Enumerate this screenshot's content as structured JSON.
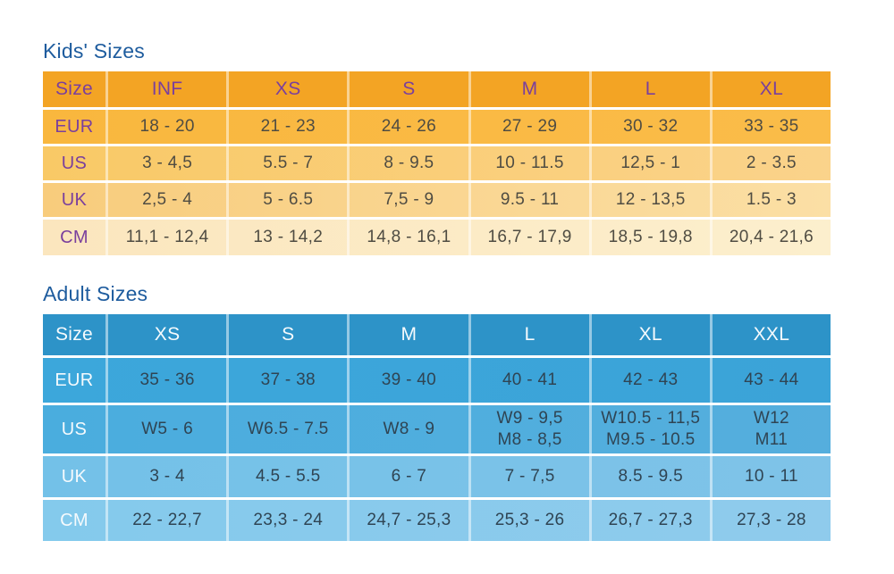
{
  "colors": {
    "page_background": "#ffffff",
    "title_text": "#1e5c9e",
    "kids_header_bg": "#f3a424",
    "kids_row_eur_bg": "#f9b942",
    "kids_row_us_bg": "#f9ce79",
    "kids_row_uk_bg": "#fad691",
    "kids_row_cm_bg": "#fbeac5",
    "kids_label_text": "#7a3f9d",
    "kids_value_text": "#4f4c42",
    "adult_header_bg": "#2d93c8",
    "adult_row_eur_bg": "#3ca7db",
    "adult_row_us_bg": "#4fadde",
    "adult_row_uk_bg": "#79c2e8",
    "adult_row_cm_bg": "#89caec",
    "adult_label_text": "#ffffff",
    "adult_value_text": "#2f4453"
  },
  "chart_data": [
    {
      "type": "table",
      "title": "Kids' Sizes",
      "header": [
        "Size",
        "INF",
        "XS",
        "S",
        "M",
        "L",
        "XL"
      ],
      "rows": [
        {
          "label": "EUR",
          "values": [
            "18 - 20",
            "21 - 23",
            "24 - 26",
            "27 - 29",
            "30 - 32",
            "33 - 35"
          ]
        },
        {
          "label": "US",
          "values": [
            "3 - 4,5",
            "5.5 - 7",
            "8 - 9.5",
            "10 - 11.5",
            "12,5 - 1",
            "2 - 3.5"
          ]
        },
        {
          "label": "UK",
          "values": [
            "2,5 - 4",
            "5 - 6.5",
            "7,5 - 9",
            "9.5 - 11",
            "12 - 13,5",
            "1.5 - 3"
          ]
        },
        {
          "label": "CM",
          "values": [
            "11,1 - 12,4",
            "13 - 14,2",
            "14,8 - 16,1",
            "16,7 - 17,9",
            "18,5 - 19,8",
            "20,4 - 21,6"
          ]
        }
      ]
    },
    {
      "type": "table",
      "title": "Adult Sizes",
      "header": [
        "Size",
        "XS",
        "S",
        "M",
        "L",
        "XL",
        "XXL"
      ],
      "rows": [
        {
          "label": "EUR",
          "values": [
            "35 - 36",
            "37 - 38",
            "39 - 40",
            "40 - 41",
            "42 - 43",
            "43 - 44"
          ]
        },
        {
          "label": "US",
          "values": [
            "W5 - 6",
            "W6.5 - 7.5",
            "W8 - 9",
            "W9 - 9,5\nM8 - 8,5",
            "W10.5 - 11,5\nM9.5 - 10.5",
            "W12\nM11"
          ]
        },
        {
          "label": "UK",
          "values": [
            "3 - 4",
            "4.5 - 5.5",
            "6 - 7",
            "7 - 7,5",
            "8.5 - 9.5",
            "10 - 11"
          ]
        },
        {
          "label": "CM",
          "values": [
            "22 - 22,7",
            "23,3 - 24",
            "24,7 - 25,3",
            "25,3 - 26",
            "26,7 - 27,3",
            "27,3 - 28"
          ]
        }
      ]
    }
  ]
}
